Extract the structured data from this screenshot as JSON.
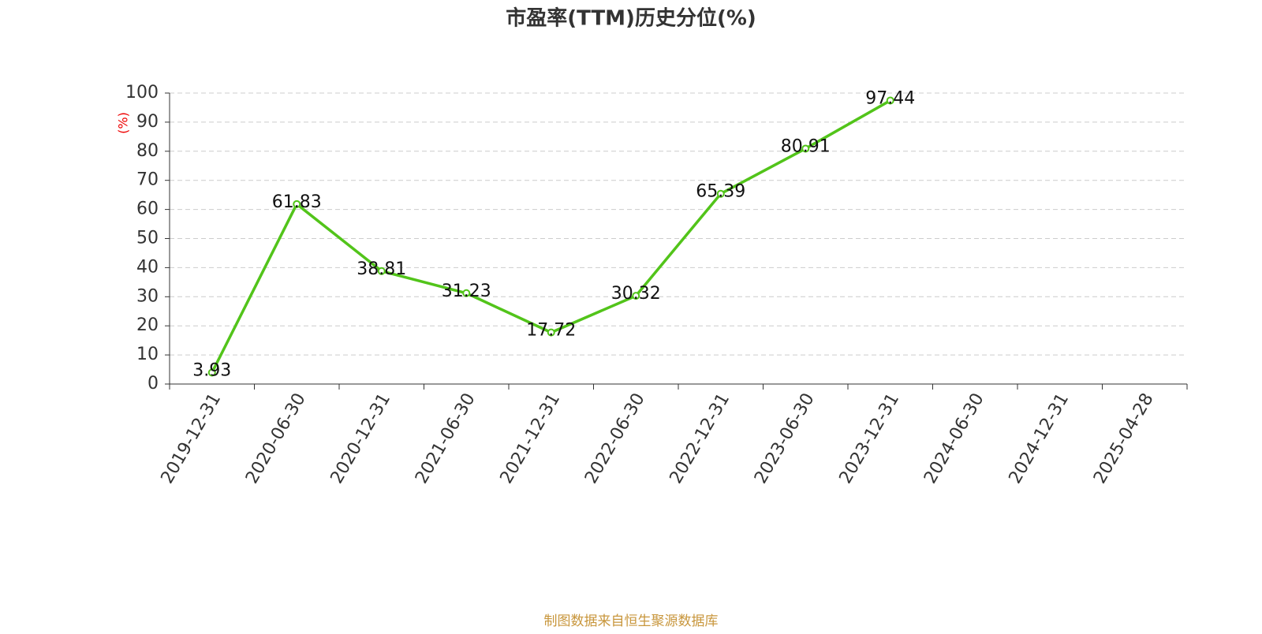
{
  "chart_data": {
    "type": "line",
    "title": "市盈率(TTM)历史分位(%)",
    "y_label": "(%)",
    "source": "制图数据来自恒生聚源数据库",
    "categories": [
      "2019-12-31",
      "2020-06-30",
      "2020-12-31",
      "2021-06-30",
      "2021-12-31",
      "2022-06-30",
      "2022-12-31",
      "2023-06-30",
      "2023-12-31",
      "2024-06-30",
      "2024-12-31",
      "2025-04-28"
    ],
    "series": [
      {
        "name": "市盈率(TTM)历史分位",
        "color": "#52c41a",
        "values": [
          3.93,
          61.83,
          38.81,
          31.23,
          17.72,
          30.32,
          65.39,
          80.91,
          97.44,
          null,
          null,
          null
        ]
      }
    ],
    "ylim": [
      0,
      100
    ],
    "yticks": [
      0,
      10,
      20,
      30,
      40,
      50,
      60,
      70,
      80,
      90,
      100
    ],
    "grid": true
  }
}
